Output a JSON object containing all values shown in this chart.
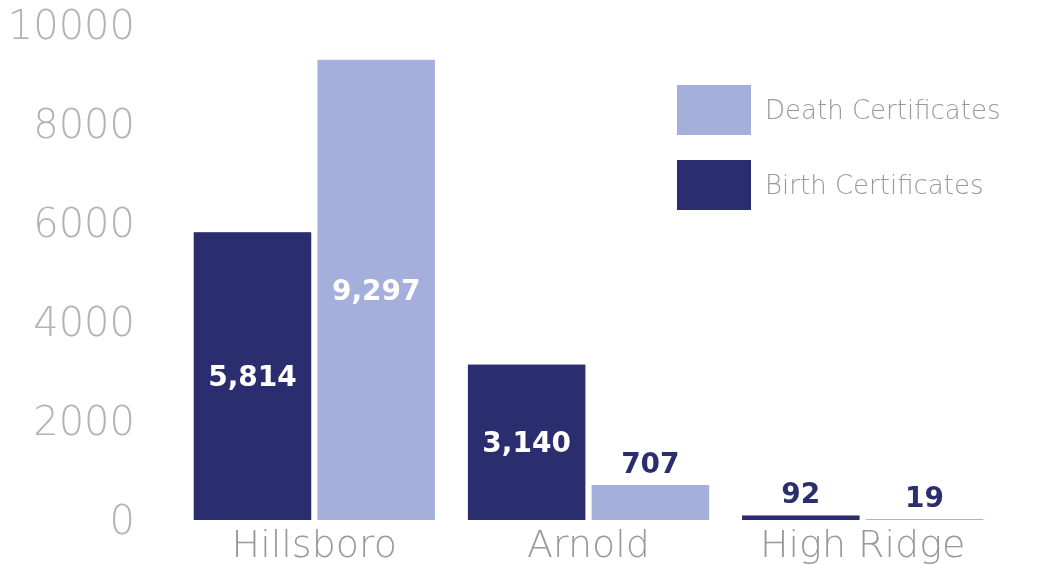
{
  "chart_data": {
    "type": "bar",
    "categories": [
      "Hillsboro",
      "Arnold",
      "High Ridge"
    ],
    "series": [
      {
        "name": "Birth Certificates",
        "color": "#2a2d6e",
        "values": [
          5814,
          3140,
          92
        ],
        "value_labels": [
          "5,814",
          "3,140",
          "92"
        ]
      },
      {
        "name": "Death Certificates",
        "color": "#a5afdc",
        "values": [
          9297,
          707,
          19
        ],
        "value_labels": [
          "9,297",
          "707",
          "19"
        ]
      }
    ],
    "ylim": [
      0,
      10000
    ],
    "yticks": [
      0,
      2000,
      4000,
      6000,
      8000,
      10000
    ],
    "grid": false,
    "legend": "top right"
  }
}
